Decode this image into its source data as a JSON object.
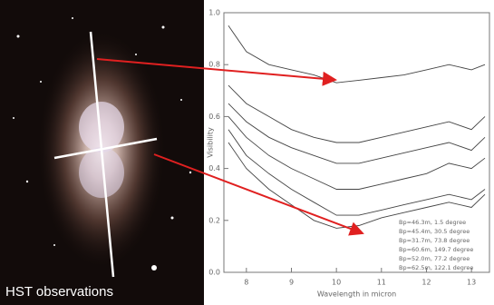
{
  "image_caption": "HST observations",
  "chart_data": {
    "type": "line",
    "x_label": "Wavelength in micron",
    "y_label": "Visibility",
    "x": [
      7.6,
      8,
      8.5,
      9,
      9.5,
      10,
      10.5,
      11,
      11.5,
      12,
      12.5,
      13,
      13.3
    ],
    "series": [
      {
        "name": "Bp=46.3m, 1.5 degree",
        "color": "#444444",
        "values": [
          0.95,
          0.85,
          0.8,
          0.78,
          0.76,
          0.73,
          0.74,
          0.75,
          0.76,
          0.78,
          0.8,
          0.78,
          0.8
        ]
      },
      {
        "name": "Bp=45.4m, 30.5 degree",
        "color": "#444444",
        "values": [
          0.72,
          0.65,
          0.6,
          0.55,
          0.52,
          0.5,
          0.5,
          0.52,
          0.54,
          0.56,
          0.58,
          0.55,
          0.6
        ]
      },
      {
        "name": "Bp=31.7m, 73.8 degree",
        "color": "#444444",
        "values": [
          0.65,
          0.58,
          0.52,
          0.48,
          0.45,
          0.42,
          0.42,
          0.44,
          0.46,
          0.48,
          0.5,
          0.47,
          0.52
        ]
      },
      {
        "name": "Bp=60.6m, 149.7 degree",
        "color": "#444444",
        "values": [
          0.6,
          0.52,
          0.45,
          0.4,
          0.36,
          0.32,
          0.32,
          0.34,
          0.36,
          0.38,
          0.42,
          0.4,
          0.44
        ]
      },
      {
        "name": "Bp=52.0m, 77.2 degree",
        "color": "#444444",
        "values": [
          0.55,
          0.45,
          0.38,
          0.32,
          0.27,
          0.22,
          0.22,
          0.24,
          0.26,
          0.28,
          0.3,
          0.28,
          0.32
        ]
      },
      {
        "name": "Bp=62.5m, 122.1 degree",
        "color": "#444444",
        "values": [
          0.5,
          0.4,
          0.32,
          0.26,
          0.2,
          0.17,
          0.18,
          0.21,
          0.23,
          0.25,
          0.27,
          0.25,
          0.3
        ]
      }
    ],
    "xlim": [
      7.5,
      13.4
    ],
    "xticks": [
      8,
      9,
      10,
      11,
      12,
      13
    ],
    "ylim": [
      0,
      1.0
    ],
    "yticks": [
      {
        "value": 0,
        "label": "0.0"
      },
      0.2,
      0.4,
      0.6,
      0.8,
      {
        "value": 1,
        "label": "1.0"
      }
    ],
    "legend": "lower right"
  }
}
